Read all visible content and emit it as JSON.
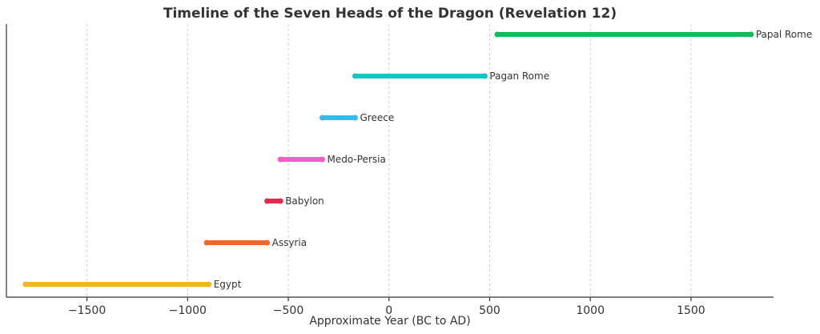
{
  "chart_data": {
    "type": "bar",
    "orientation": "horizontal-range",
    "title": "Timeline of the Seven Heads of the Dragon (Revelation 12)",
    "xlabel": "Approximate Year (BC to AD)",
    "ylabel": "",
    "xlim": [
      -1900,
      1910
    ],
    "xticks": [
      -1500,
      -1000,
      -500,
      0,
      500,
      1000,
      1500
    ],
    "xtick_labels": [
      "−1500",
      "−1000",
      "−500",
      "0",
      "500",
      "1000",
      "1500"
    ],
    "grid": "x-dashed",
    "series": [
      {
        "name": "Egypt",
        "start": -1805,
        "end": -895,
        "color": "#F5B51B"
      },
      {
        "name": "Assyria",
        "start": -905,
        "end": -605,
        "color": "#EE6A22"
      },
      {
        "name": "Babylon",
        "start": -605,
        "end": -539,
        "color": "#E8294F"
      },
      {
        "name": "Medo-Persia",
        "start": -539,
        "end": -331,
        "color": "#F25DC8"
      },
      {
        "name": "Greece",
        "start": -331,
        "end": -168,
        "color": "#2EBDF0"
      },
      {
        "name": "Pagan Rome",
        "start": -168,
        "end": 476,
        "color": "#0EC9C4"
      },
      {
        "name": "Papal Rome",
        "start": 538,
        "end": 1798,
        "color": "#0EBE5D"
      }
    ]
  }
}
